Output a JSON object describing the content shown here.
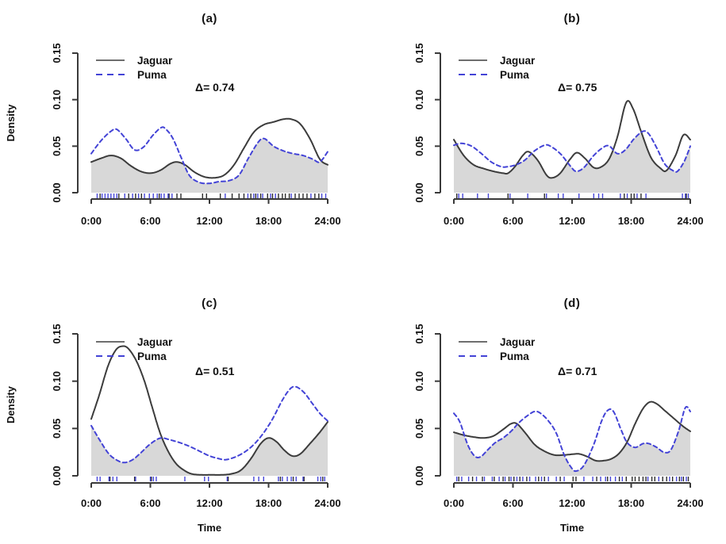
{
  "figure": {
    "ylabel": "Density",
    "xlabel": "Time",
    "legend": {
      "jaguar": "Jaguar",
      "puma": "Puma"
    },
    "colors": {
      "jaguar_line": "#3c3c3c",
      "jaguar_legend_line": "#6e6e6e",
      "puma_line": "#4343d6",
      "overlap_fill": "#d8d8d8",
      "axis": "#3a3a3a",
      "rug_jaguar": "#2b2b2b",
      "rug_puma": "#4545d8",
      "text": "#111111"
    }
  },
  "chart_data": [
    {
      "id": "a",
      "type": "line",
      "kind": "kernel-density-overlap",
      "title": "(a)",
      "delta": 0.74,
      "delta_label": "Δ=  0.74",
      "xlim": [
        0,
        24
      ],
      "ylim": [
        0,
        0.15
      ],
      "xticks": [
        "0:00",
        "6:00",
        "12:00",
        "18:00",
        "24:00"
      ],
      "xtick_hours": [
        0,
        6,
        12,
        18,
        24
      ],
      "yticks": [
        "0.00",
        "0.05",
        "0.10",
        "0.15"
      ],
      "ytick_values": [
        0,
        0.05,
        0.1,
        0.15
      ],
      "show_ylabel": true,
      "show_xlabel": false,
      "overlap": "min-of-series",
      "series": [
        {
          "name": "Jaguar",
          "style": "solid",
          "x": [
            0,
            1,
            2,
            3,
            4,
            5,
            6,
            7,
            8,
            8.7,
            9.5,
            10.5,
            11.5,
            12.5,
            13.5,
            14.5,
            15.5,
            16.5,
            17.5,
            18.5,
            19.5,
            20.3,
            21.2,
            22.2,
            23.2,
            24
          ],
          "y": [
            0.033,
            0.037,
            0.04,
            0.037,
            0.029,
            0.023,
            0.021,
            0.024,
            0.031,
            0.033,
            0.03,
            0.022,
            0.017,
            0.016,
            0.019,
            0.03,
            0.048,
            0.065,
            0.073,
            0.076,
            0.079,
            0.079,
            0.074,
            0.058,
            0.036,
            0.03
          ]
        },
        {
          "name": "Puma",
          "style": "dashed",
          "x": [
            0,
            1,
            2,
            2.6,
            3.5,
            4.4,
            5.3,
            6.2,
            7.1,
            7.6,
            8.3,
            9.2,
            10,
            11,
            12,
            13,
            14,
            15,
            16,
            17,
            17.6,
            18.5,
            19.5,
            20.5,
            21.5,
            22.5,
            23.2,
            24
          ],
          "y": [
            0.042,
            0.056,
            0.066,
            0.068,
            0.058,
            0.046,
            0.049,
            0.061,
            0.07,
            0.068,
            0.058,
            0.036,
            0.018,
            0.011,
            0.01,
            0.012,
            0.013,
            0.019,
            0.038,
            0.055,
            0.058,
            0.05,
            0.045,
            0.042,
            0.04,
            0.036,
            0.033,
            0.044
          ]
        }
      ],
      "rug": {
        "jaguar": [
          0.9,
          2.8,
          3.8,
          4.5,
          5.1,
          6.9,
          7.9,
          8.7,
          9.1,
          11.3,
          11.7,
          13.1,
          14.3,
          15.0,
          15.5,
          16.2,
          16.7,
          17.2,
          17.9,
          18.4,
          19.0,
          19.4,
          19.7,
          20.1,
          20.7,
          21.1,
          21.5,
          21.9,
          22.7,
          23.1
        ],
        "puma": [
          0.6,
          1.1,
          1.4,
          1.7,
          2.0,
          2.3,
          2.6,
          3.4,
          4.2,
          4.8,
          5.4,
          5.9,
          6.3,
          6.7,
          7.1,
          7.4,
          7.8,
          8.2,
          13.6,
          15.9,
          16.5,
          16.9,
          17.4,
          18.2,
          18.7,
          20.3,
          22.3,
          23.4,
          23.8
        ]
      }
    },
    {
      "id": "b",
      "type": "line",
      "kind": "kernel-density-overlap",
      "title": "(b)",
      "delta": 0.75,
      "delta_label": "Δ=  0.75",
      "xlim": [
        0,
        24
      ],
      "ylim": [
        0,
        0.15
      ],
      "xticks": [
        "0:00",
        "6:00",
        "12:00",
        "18:00",
        "24:00"
      ],
      "xtick_hours": [
        0,
        6,
        12,
        18,
        24
      ],
      "yticks": [
        "0.00",
        "0.05",
        "0.10",
        "0.15"
      ],
      "ytick_values": [
        0,
        0.05,
        0.1,
        0.15
      ],
      "show_ylabel": false,
      "show_xlabel": false,
      "overlap": "min-of-series",
      "series": [
        {
          "name": "Jaguar",
          "style": "solid",
          "x": [
            0,
            1,
            2,
            3,
            4,
            5,
            5.5,
            6.2,
            7,
            7.6,
            8.5,
            9.4,
            10,
            10.8,
            11.8,
            12.5,
            13.3,
            14.2,
            15,
            15.8,
            16.6,
            17.5,
            18.2,
            19,
            20,
            21,
            21.6,
            22.5,
            23.3,
            24
          ],
          "y": [
            0.057,
            0.04,
            0.03,
            0.026,
            0.023,
            0.021,
            0.021,
            0.028,
            0.04,
            0.044,
            0.035,
            0.019,
            0.016,
            0.021,
            0.036,
            0.043,
            0.037,
            0.027,
            0.028,
            0.037,
            0.06,
            0.097,
            0.09,
            0.066,
            0.038,
            0.026,
            0.024,
            0.04,
            0.062,
            0.057
          ]
        },
        {
          "name": "Puma",
          "style": "dashed",
          "x": [
            0,
            0.8,
            1.8,
            2.8,
            3.8,
            4.8,
            5.5,
            6.3,
            7.2,
            8.2,
            9.2,
            9.8,
            10.8,
            11.8,
            12.4,
            13.2,
            14.2,
            15.2,
            15.8,
            16.6,
            17.4,
            18.3,
            19.2,
            19.8,
            20.6,
            21.4,
            22.2,
            22.7,
            23.4,
            24
          ],
          "y": [
            0.051,
            0.053,
            0.05,
            0.042,
            0.033,
            0.028,
            0.028,
            0.03,
            0.035,
            0.045,
            0.051,
            0.05,
            0.042,
            0.029,
            0.023,
            0.027,
            0.04,
            0.049,
            0.05,
            0.042,
            0.046,
            0.058,
            0.066,
            0.063,
            0.048,
            0.031,
            0.024,
            0.023,
            0.034,
            0.05
          ]
        }
      ],
      "rug": {
        "jaguar": [
          0.3,
          5.5,
          9.2,
          17.3,
          18.0,
          18.3,
          19.0,
          23.6
        ],
        "puma": [
          0.5,
          0.9,
          2.4,
          3.5,
          5.7,
          7.5,
          9.4,
          10.6,
          11.1,
          12.7,
          14.2,
          14.7,
          15.1,
          16.9,
          17.6,
          18.6,
          19.5,
          23.2,
          23.5,
          23.8
        ]
      }
    },
    {
      "id": "c",
      "type": "line",
      "kind": "kernel-density-overlap",
      "title": "(c)",
      "delta": 0.51,
      "delta_label": "Δ=  0.51",
      "xlim": [
        0,
        24
      ],
      "ylim": [
        0,
        0.15
      ],
      "xticks": [
        "0:00",
        "6:00",
        "12:00",
        "18:00",
        "24:00"
      ],
      "xtick_hours": [
        0,
        6,
        12,
        18,
        24
      ],
      "yticks": [
        "0.00",
        "0.05",
        "0.10",
        "0.15"
      ],
      "ytick_values": [
        0,
        0.05,
        0.1,
        0.15
      ],
      "show_ylabel": true,
      "show_xlabel": true,
      "overlap": "min-of-series",
      "series": [
        {
          "name": "Jaguar",
          "style": "solid",
          "x": [
            0,
            0.8,
            1.7,
            2.5,
            3.2,
            3.8,
            4.6,
            5.4,
            6.2,
            7,
            7.8,
            8.6,
            9.4,
            10.2,
            11.2,
            12.2,
            13.2,
            14.2,
            15.2,
            16.2,
            17.2,
            18,
            18.8,
            19.6,
            20.4,
            21.2,
            22.2,
            23.2,
            24
          ],
          "y": [
            0.06,
            0.085,
            0.116,
            0.133,
            0.137,
            0.134,
            0.121,
            0.1,
            0.072,
            0.045,
            0.026,
            0.013,
            0.006,
            0.002,
            0.001,
            0.001,
            0.001,
            0.002,
            0.006,
            0.018,
            0.034,
            0.04,
            0.036,
            0.027,
            0.021,
            0.023,
            0.034,
            0.046,
            0.057
          ]
        },
        {
          "name": "Puma",
          "style": "dashed",
          "x": [
            0,
            0.9,
            1.8,
            2.7,
            3.4,
            4.2,
            5,
            5.8,
            6.6,
            7.2,
            8,
            9,
            10,
            11,
            12,
            13,
            13.6,
            14.4,
            15.4,
            16.4,
            17.4,
            18.4,
            19.4,
            20.2,
            20.8,
            21.6,
            22.4,
            23.2,
            24
          ],
          "y": [
            0.053,
            0.037,
            0.023,
            0.016,
            0.014,
            0.017,
            0.024,
            0.032,
            0.038,
            0.04,
            0.038,
            0.035,
            0.031,
            0.026,
            0.021,
            0.018,
            0.017,
            0.019,
            0.024,
            0.032,
            0.044,
            0.06,
            0.08,
            0.092,
            0.094,
            0.088,
            0.077,
            0.066,
            0.058
          ]
        }
      ],
      "rug": {
        "jaguar": [
          1.9,
          4.4,
          6.1,
          13.9,
          19.2,
          20.5,
          21.6,
          23.5
        ],
        "puma": [
          0.6,
          0.9,
          1.8,
          2.2,
          2.6,
          4.5,
          6.0,
          6.3,
          6.6,
          9.5,
          11.5,
          11.9,
          13.8,
          16.5,
          17.0,
          17.5,
          19.0,
          19.4,
          19.9,
          20.3,
          20.8,
          21.5,
          23.0,
          23.3,
          23.7
        ]
      }
    },
    {
      "id": "d",
      "type": "line",
      "kind": "kernel-density-overlap",
      "title": "(d)",
      "delta": 0.71,
      "delta_label": "Δ=  0.71",
      "xlim": [
        0,
        24
      ],
      "ylim": [
        0,
        0.15
      ],
      "xticks": [
        "0:00",
        "6:00",
        "12:00",
        "18:00",
        "24:00"
      ],
      "xtick_hours": [
        0,
        6,
        12,
        18,
        24
      ],
      "yticks": [
        "0.00",
        "0.05",
        "0.10",
        "0.15"
      ],
      "ytick_values": [
        0,
        0.05,
        0.1,
        0.15
      ],
      "show_ylabel": false,
      "show_xlabel": true,
      "overlap": "min-of-series",
      "series": [
        {
          "name": "Jaguar",
          "style": "solid",
          "x": [
            0,
            1,
            2,
            3,
            4,
            5,
            5.8,
            6.4,
            7.2,
            8.2,
            9.2,
            10.2,
            11.2,
            12.2,
            12.8,
            13.6,
            14.4,
            15.2,
            16,
            16.8,
            17.6,
            18.4,
            19.2,
            19.9,
            20.6,
            21.4,
            22.4,
            23.3,
            24
          ],
          "y": [
            0.046,
            0.043,
            0.041,
            0.04,
            0.042,
            0.049,
            0.055,
            0.055,
            0.046,
            0.033,
            0.026,
            0.022,
            0.022,
            0.023,
            0.023,
            0.02,
            0.016,
            0.016,
            0.018,
            0.024,
            0.036,
            0.055,
            0.071,
            0.078,
            0.076,
            0.069,
            0.06,
            0.052,
            0.047
          ]
        },
        {
          "name": "Puma",
          "style": "dashed",
          "x": [
            0,
            0.6,
            1.4,
            2.1,
            2.7,
            3.4,
            4.2,
            5,
            5.8,
            6.6,
            7.4,
            8.2,
            8.8,
            9.6,
            10.4,
            11.2,
            11.9,
            12.4,
            13.2,
            14.2,
            15,
            15.6,
            16.2,
            17,
            17.6,
            18.4,
            19.2,
            19.8,
            20.6,
            21.3,
            22,
            22.8,
            23.5,
            24
          ],
          "y": [
            0.066,
            0.057,
            0.033,
            0.021,
            0.02,
            0.027,
            0.035,
            0.04,
            0.047,
            0.056,
            0.063,
            0.068,
            0.066,
            0.058,
            0.045,
            0.022,
            0.009,
            0.005,
            0.011,
            0.033,
            0.058,
            0.069,
            0.068,
            0.048,
            0.035,
            0.03,
            0.034,
            0.034,
            0.03,
            0.025,
            0.027,
            0.047,
            0.072,
            0.068
          ]
        }
      ],
      "rug": {
        "jaguar": [
          0.5,
          1.9,
          2.9,
          4.1,
          5.0,
          5.6,
          6.1,
          6.7,
          7.4,
          8.6,
          9.2,
          10.8,
          12.1,
          12.4,
          14.5,
          15.6,
          16.8,
          17.5,
          18.1,
          18.4,
          18.8,
          19.2,
          19.5,
          20.1,
          20.4,
          21.2,
          21.6,
          22.2,
          22.9,
          23.3,
          23.8
        ],
        "puma": [
          0.3,
          0.8,
          1.5,
          2.3,
          3.1,
          3.9,
          4.6,
          5.2,
          5.8,
          6.4,
          7.0,
          7.7,
          8.3,
          8.9,
          9.6,
          10.4,
          11.2,
          13.2,
          14.1,
          14.9,
          15.4,
          15.9,
          16.4,
          17.1,
          19.7,
          20.8,
          21.9,
          22.6,
          23.1,
          23.6
        ]
      }
    }
  ]
}
